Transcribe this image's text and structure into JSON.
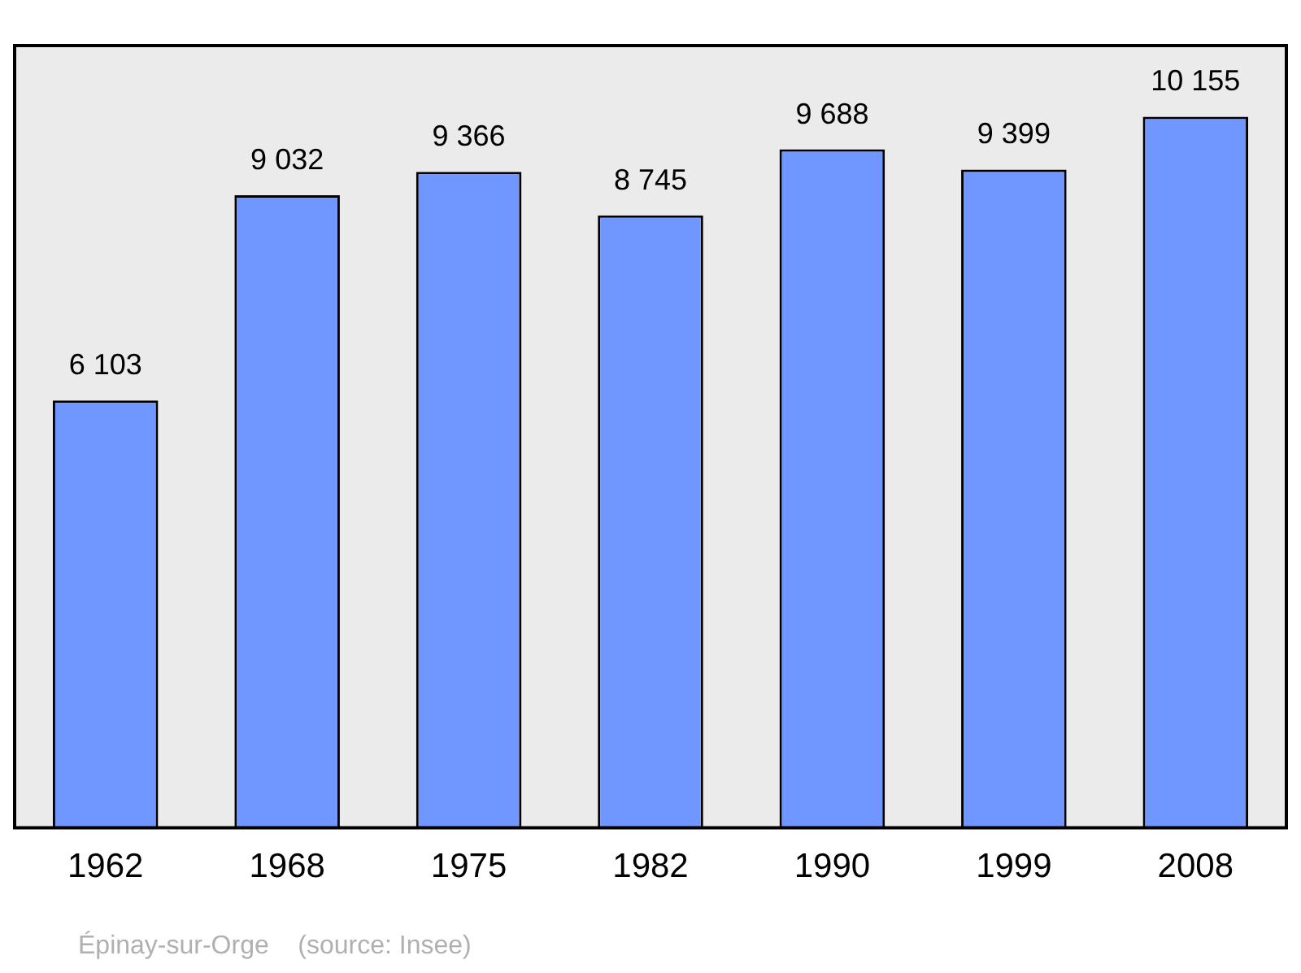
{
  "chart_data": {
    "type": "bar",
    "categories": [
      "1962",
      "1968",
      "1975",
      "1982",
      "1990",
      "1999",
      "2008"
    ],
    "values": [
      6103,
      9032,
      9366,
      8745,
      9688,
      9399,
      10155
    ],
    "value_labels": [
      "6 103",
      "9 032",
      "9 366",
      "8 745",
      "9 688",
      "9 399",
      "10 155"
    ],
    "color": "#7097ff",
    "annotations": [
      "Épinay-sur-Orge    (source: Insee)"
    ],
    "grid": false,
    "legend": false
  }
}
